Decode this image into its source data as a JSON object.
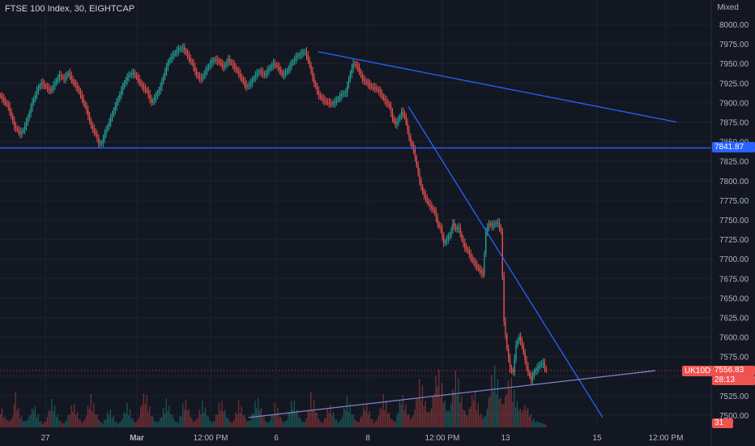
{
  "header": {
    "title": "FTSE 100 Index, 30, EIGHTCAP",
    "scale_mode": "Mixed"
  },
  "badges": {
    "hline_price": "7841.87",
    "symbol": "UK10D",
    "last_price": "7556.83",
    "countdown": "28:13",
    "volume": "31"
  },
  "colors": {
    "background": "#131722",
    "up": "#26a69a",
    "down": "#ef5350",
    "drawing": "#2962ff",
    "axis_text": "#b2b5be"
  },
  "chart_data": {
    "type": "candlestick",
    "symbol": "FTSE 100 Index",
    "interval": "30",
    "source": "EIGHTCAP",
    "y_ticks": [
      7500,
      7525,
      7550,
      7575,
      7600,
      7625,
      7650,
      7675,
      7700,
      7725,
      7750,
      7775,
      7800,
      7825,
      7850,
      7875,
      7900,
      7925,
      7950,
      7975,
      8000
    ],
    "ylim": [
      7492,
      8008
    ],
    "x_ticks": [
      "27",
      "Mar",
      "12:00 PM",
      "6",
      "8",
      "12:00 PM",
      "13",
      "15",
      "12:00 PM"
    ],
    "price_path": [
      [
        0,
        7910
      ],
      [
        6,
        7895
      ],
      [
        10,
        7870
      ],
      [
        14,
        7860
      ],
      [
        16,
        7865
      ],
      [
        19,
        7880
      ],
      [
        22,
        7900
      ],
      [
        25,
        7915
      ],
      [
        28,
        7925
      ],
      [
        31,
        7920
      ],
      [
        34,
        7915
      ],
      [
        37,
        7925
      ],
      [
        40,
        7935
      ],
      [
        43,
        7930
      ],
      [
        46,
        7938
      ],
      [
        49,
        7926
      ],
      [
        52,
        7918
      ],
      [
        55,
        7905
      ],
      [
        58,
        7890
      ],
      [
        61,
        7870
      ],
      [
        64,
        7860
      ],
      [
        66,
        7847
      ],
      [
        68,
        7848
      ],
      [
        70,
        7860
      ],
      [
        72,
        7870
      ],
      [
        74,
        7880
      ],
      [
        77,
        7895
      ],
      [
        80,
        7910
      ],
      [
        83,
        7925
      ],
      [
        86,
        7935
      ],
      [
        89,
        7938
      ],
      [
        92,
        7930
      ],
      [
        95,
        7920
      ],
      [
        98,
        7915
      ],
      [
        101,
        7900
      ],
      [
        104,
        7908
      ],
      [
        107,
        7920
      ],
      [
        110,
        7940
      ],
      [
        113,
        7955
      ],
      [
        116,
        7962
      ],
      [
        119,
        7968
      ],
      [
        122,
        7970
      ],
      [
        125,
        7960
      ],
      [
        128,
        7950
      ],
      [
        131,
        7935
      ],
      [
        134,
        7930
      ],
      [
        137,
        7940
      ],
      [
        140,
        7950
      ],
      [
        143,
        7955
      ],
      [
        146,
        7952
      ],
      [
        149,
        7945
      ],
      [
        152,
        7955
      ],
      [
        155,
        7948
      ],
      [
        158,
        7940
      ],
      [
        161,
        7930
      ],
      [
        164,
        7920
      ],
      [
        167,
        7925
      ],
      [
        170,
        7935
      ],
      [
        173,
        7940
      ],
      [
        176,
        7935
      ],
      [
        179,
        7943
      ],
      [
        182,
        7950
      ],
      [
        185,
        7945
      ],
      [
        188,
        7935
      ],
      [
        191,
        7940
      ],
      [
        194,
        7950
      ],
      [
        197,
        7958
      ],
      [
        200,
        7962
      ],
      [
        203,
        7965
      ],
      [
        205,
        7955
      ],
      [
        207,
        7940
      ],
      [
        209,
        7925
      ],
      [
        212,
        7910
      ],
      [
        215,
        7903
      ],
      [
        218,
        7900
      ],
      [
        221,
        7898
      ],
      [
        224,
        7903
      ],
      [
        227,
        7910
      ],
      [
        230,
        7913
      ],
      [
        232,
        7930
      ],
      [
        235,
        7950
      ],
      [
        238,
        7945
      ],
      [
        241,
        7930
      ],
      [
        244,
        7925
      ],
      [
        247,
        7920
      ],
      [
        250,
        7918
      ],
      [
        253,
        7912
      ],
      [
        255,
        7905
      ],
      [
        257,
        7900
      ],
      [
        259,
        7895
      ],
      [
        261,
        7880
      ],
      [
        263,
        7872
      ],
      [
        265,
        7878
      ],
      [
        267,
        7888
      ],
      [
        269,
        7883
      ],
      [
        271,
        7865
      ],
      [
        273,
        7848
      ],
      [
        275,
        7840
      ],
      [
        277,
        7820
      ],
      [
        279,
        7800
      ],
      [
        281,
        7785
      ],
      [
        283,
        7778
      ],
      [
        285,
        7770
      ],
      [
        287,
        7765
      ],
      [
        289,
        7760
      ],
      [
        291,
        7745
      ],
      [
        293,
        7738
      ],
      [
        295,
        7720
      ],
      [
        297,
        7725
      ],
      [
        299,
        7730
      ],
      [
        301,
        7745
      ],
      [
        303,
        7738
      ],
      [
        305,
        7740
      ],
      [
        307,
        7725
      ],
      [
        309,
        7715
      ],
      [
        311,
        7710
      ],
      [
        313,
        7702
      ],
      [
        315,
        7695
      ],
      [
        317,
        7690
      ],
      [
        319,
        7685
      ],
      [
        321,
        7680
      ],
      [
        323,
        7735
      ],
      [
        325,
        7745
      ],
      [
        327,
        7742
      ],
      [
        329,
        7745
      ],
      [
        331,
        7746
      ],
      [
        333,
        7735
      ],
      [
        335,
        7620
      ],
      [
        337,
        7585
      ],
      [
        339,
        7560
      ],
      [
        341,
        7555
      ],
      [
        343,
        7590
      ],
      [
        345,
        7600
      ],
      [
        347,
        7590
      ],
      [
        349,
        7570
      ],
      [
        351,
        7555
      ],
      [
        353,
        7545
      ],
      [
        355,
        7555
      ],
      [
        357,
        7560
      ],
      [
        359,
        7565
      ],
      [
        361,
        7567
      ],
      [
        362.5,
        7557
      ]
    ],
    "volume_path": [
      [
        0,
        55
      ],
      [
        2,
        30
      ],
      [
        4,
        20
      ],
      [
        6,
        15
      ],
      [
        8,
        25
      ],
      [
        9,
        70
      ],
      [
        10,
        80
      ],
      [
        12,
        45
      ],
      [
        14,
        25
      ],
      [
        16,
        15
      ],
      [
        18,
        20
      ],
      [
        20,
        35
      ],
      [
        22,
        55
      ],
      [
        24,
        40
      ],
      [
        26,
        20
      ],
      [
        28,
        10
      ],
      [
        30,
        15
      ],
      [
        32,
        40
      ],
      [
        34,
        65
      ],
      [
        36,
        50
      ],
      [
        38,
        30
      ],
      [
        40,
        15
      ],
      [
        42,
        10
      ],
      [
        44,
        20
      ],
      [
        46,
        40
      ],
      [
        48,
        60
      ],
      [
        50,
        45
      ],
      [
        52,
        25
      ],
      [
        54,
        12
      ],
      [
        56,
        20
      ],
      [
        58,
        50
      ],
      [
        60,
        75
      ],
      [
        62,
        55
      ],
      [
        64,
        30
      ],
      [
        66,
        15
      ],
      [
        68,
        10
      ],
      [
        70,
        25
      ],
      [
        72,
        45
      ],
      [
        74,
        35
      ],
      [
        76,
        18
      ],
      [
        78,
        10
      ],
      [
        80,
        15
      ],
      [
        82,
        35
      ],
      [
        84,
        55
      ],
      [
        86,
        40
      ],
      [
        88,
        20
      ],
      [
        90,
        12
      ],
      [
        92,
        28
      ],
      [
        94,
        70
      ],
      [
        96,
        85
      ],
      [
        98,
        60
      ],
      [
        100,
        35
      ],
      [
        102,
        18
      ],
      [
        104,
        12
      ],
      [
        106,
        22
      ],
      [
        108,
        45
      ],
      [
        110,
        65
      ],
      [
        112,
        50
      ],
      [
        114,
        30
      ],
      [
        116,
        15
      ],
      [
        118,
        12
      ],
      [
        120,
        38
      ],
      [
        122,
        70
      ],
      [
        124,
        55
      ],
      [
        126,
        30
      ],
      [
        128,
        15
      ],
      [
        130,
        20
      ],
      [
        132,
        40
      ],
      [
        134,
        60
      ],
      [
        136,
        45
      ],
      [
        138,
        25
      ],
      [
        140,
        12
      ],
      [
        142,
        18
      ],
      [
        144,
        42
      ],
      [
        146,
        68
      ],
      [
        148,
        52
      ],
      [
        150,
        30
      ],
      [
        152,
        15
      ],
      [
        154,
        12
      ],
      [
        156,
        35
      ],
      [
        158,
        60
      ],
      [
        160,
        48
      ],
      [
        162,
        28
      ],
      [
        164,
        14
      ],
      [
        166,
        20
      ],
      [
        168,
        45
      ],
      [
        170,
        75
      ],
      [
        172,
        58
      ],
      [
        174,
        32
      ],
      [
        176,
        16
      ],
      [
        178,
        12
      ],
      [
        180,
        30
      ],
      [
        182,
        55
      ],
      [
        184,
        44
      ],
      [
        186,
        24
      ],
      [
        188,
        12
      ],
      [
        190,
        20
      ],
      [
        192,
        50
      ],
      [
        194,
        70
      ],
      [
        196,
        52
      ],
      [
        198,
        30
      ],
      [
        200,
        15
      ],
      [
        202,
        12
      ],
      [
        204,
        40
      ],
      [
        206,
        80
      ],
      [
        208,
        62
      ],
      [
        210,
        35
      ],
      [
        212,
        16
      ],
      [
        214,
        12
      ],
      [
        216,
        30
      ],
      [
        218,
        55
      ],
      [
        220,
        45
      ],
      [
        222,
        25
      ],
      [
        224,
        12
      ],
      [
        226,
        20
      ],
      [
        228,
        45
      ],
      [
        230,
        70
      ],
      [
        232,
        55
      ],
      [
        234,
        30
      ],
      [
        236,
        16
      ],
      [
        238,
        14
      ],
      [
        240,
        35
      ],
      [
        242,
        60
      ],
      [
        244,
        48
      ],
      [
        246,
        26
      ],
      [
        248,
        12
      ],
      [
        250,
        20
      ],
      [
        252,
        45
      ],
      [
        254,
        75
      ],
      [
        256,
        60
      ],
      [
        258,
        35
      ],
      [
        260,
        18
      ],
      [
        262,
        15
      ],
      [
        264,
        45
      ],
      [
        266,
        80
      ],
      [
        268,
        65
      ],
      [
        270,
        40
      ],
      [
        272,
        22
      ],
      [
        274,
        30
      ],
      [
        276,
        70
      ],
      [
        278,
        110
      ],
      [
        280,
        95
      ],
      [
        282,
        60
      ],
      [
        284,
        35
      ],
      [
        286,
        50
      ],
      [
        288,
        100
      ],
      [
        290,
        140
      ],
      [
        292,
        120
      ],
      [
        294,
        80
      ],
      [
        296,
        45
      ],
      [
        298,
        40
      ],
      [
        300,
        90
      ],
      [
        302,
        130
      ],
      [
        304,
        110
      ],
      [
        306,
        70
      ],
      [
        308,
        40
      ],
      [
        310,
        30
      ],
      [
        312,
        60
      ],
      [
        314,
        90
      ],
      [
        316,
        70
      ],
      [
        318,
        40
      ],
      [
        320,
        25
      ],
      [
        322,
        30
      ],
      [
        324,
        70
      ],
      [
        326,
        120
      ],
      [
        328,
        140
      ],
      [
        330,
        110
      ],
      [
        332,
        70
      ],
      [
        334,
        60
      ],
      [
        336,
        95
      ],
      [
        338,
        125
      ],
      [
        340,
        100
      ],
      [
        342,
        70
      ],
      [
        344,
        50
      ],
      [
        346,
        40
      ],
      [
        348,
        55
      ],
      [
        350,
        45
      ],
      [
        352,
        30
      ],
      [
        354,
        20
      ],
      [
        356,
        15
      ],
      [
        358,
        12
      ],
      [
        360,
        10
      ],
      [
        362,
        8
      ]
    ],
    "horizontal_lines": [
      {
        "price": 7841.87
      }
    ],
    "trend_lines": [
      {
        "from": [
          211,
          7965
        ],
        "to": [
          449,
          7875
        ]
      },
      {
        "from": [
          271,
          7895
        ],
        "to": [
          400,
          7497
        ]
      },
      {
        "from": [
          165,
          7497
        ],
        "to": [
          435,
          7557
        ]
      }
    ],
    "grid": true,
    "price_axis": "right",
    "time_axis": "bottom"
  }
}
